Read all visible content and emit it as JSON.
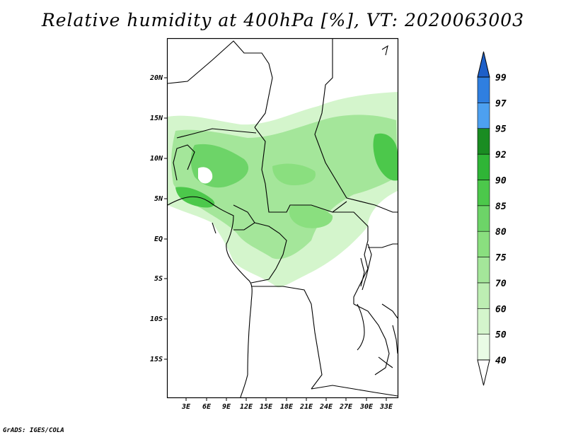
{
  "title": "Relative humidity at 400hPa [%], VT: 2020063003",
  "credit": "GrADS: IGES/COLA",
  "map": {
    "lat_labels": [
      "20N",
      "15N",
      "10N",
      "5N",
      "EQ",
      "5S",
      "10S",
      "15S"
    ],
    "lon_labels": [
      "3E",
      "6E",
      "9E",
      "12E",
      "15E",
      "18E",
      "21E",
      "24E",
      "27E",
      "30E",
      "33E"
    ]
  },
  "colorbar": {
    "levels": [
      "40",
      "50",
      "60",
      "70",
      "75",
      "80",
      "85",
      "90",
      "92",
      "95",
      "97",
      "99"
    ],
    "colors": [
      "#ffffff",
      "#e9fbe5",
      "#d4f5cc",
      "#bdeeb3",
      "#a4e69a",
      "#8adf7f",
      "#6dd468",
      "#4cc84b",
      "#2fb536",
      "#1a8c22",
      "#4da0f0",
      "#2f7fe0",
      "#1d5fc8"
    ]
  }
}
